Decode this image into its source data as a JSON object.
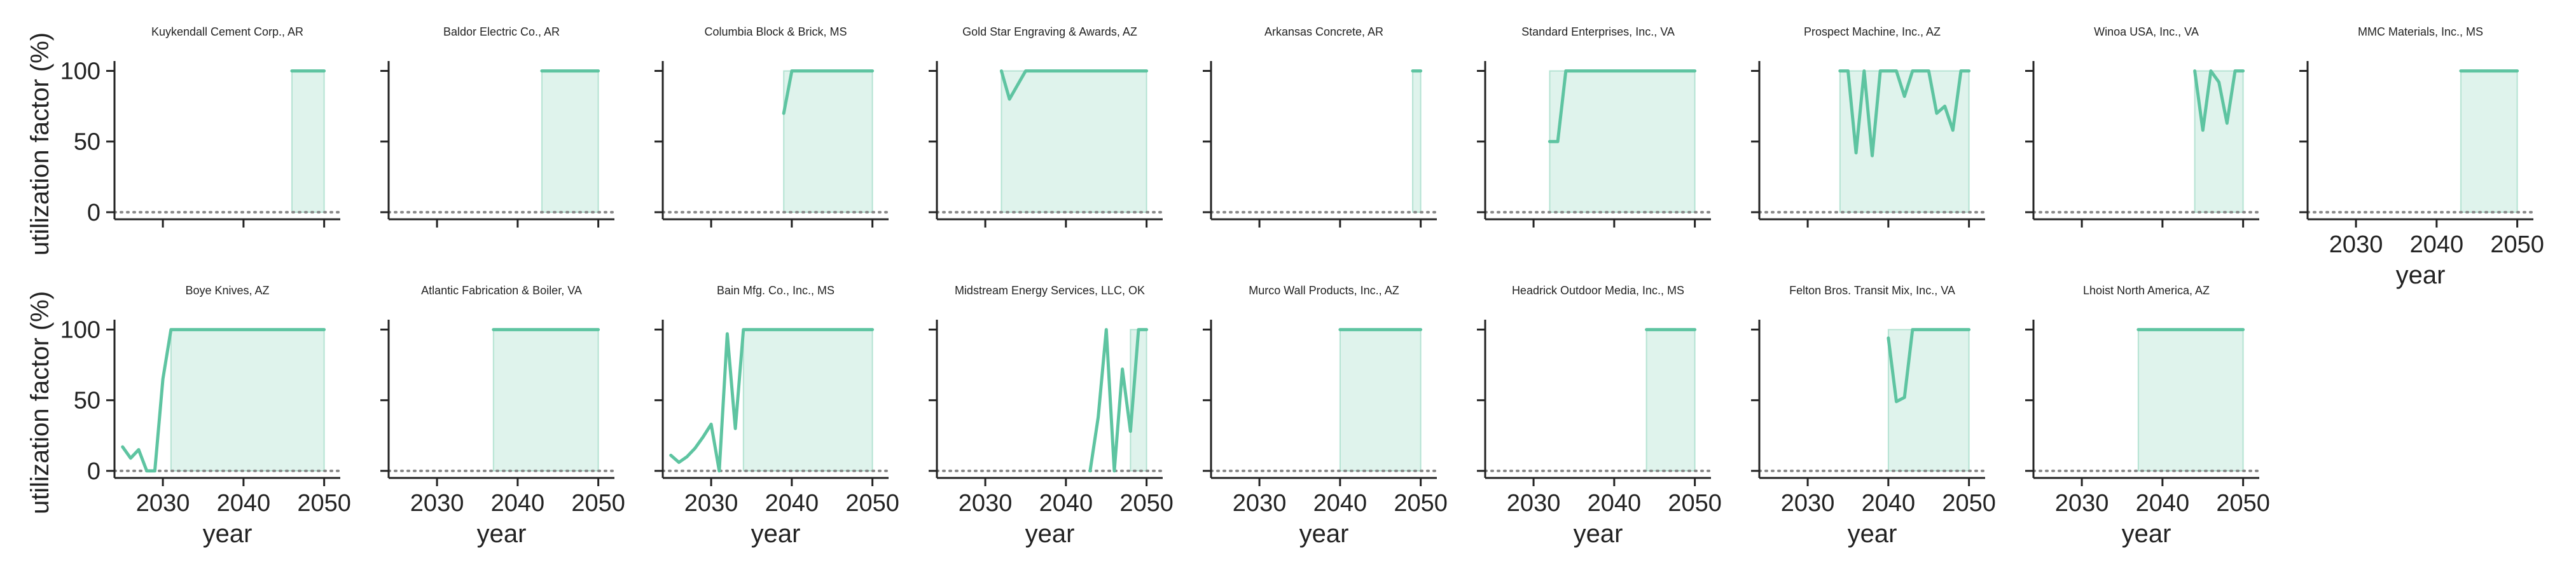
{
  "figure": {
    "xlabel": "year",
    "ylabel": "utilization factor (%)",
    "line_color": "#5ec4a1",
    "fill_color": "#5ec4a1",
    "fill_opacity": 0.2,
    "axis_color": "#222222",
    "zero_line_color": "#888888",
    "zero_line_style": "dotted",
    "x_ticks": [
      2030,
      2040,
      2050
    ],
    "y_ticks": [
      0,
      50,
      100
    ]
  },
  "chart_data": [
    {
      "type": "line",
      "title": "Kuykendall Cement Corp., AR",
      "xlim": [
        2024,
        2052
      ],
      "ylim": [
        -5,
        107
      ],
      "x": [
        2046,
        2050
      ],
      "values": [
        100,
        100
      ],
      "shade": [
        2046,
        2050
      ]
    },
    {
      "type": "line",
      "title": "Baldor Electric Co., AR",
      "xlim": [
        2024,
        2052
      ],
      "ylim": [
        -5,
        107
      ],
      "x": [
        2043,
        2050
      ],
      "values": [
        100,
        100
      ],
      "shade": [
        2043,
        2050
      ]
    },
    {
      "type": "line",
      "title": "Columbia Block & Brick, MS",
      "xlim": [
        2024,
        2052
      ],
      "ylim": [
        -5,
        107
      ],
      "x": [
        2039,
        2040,
        2050
      ],
      "values": [
        70,
        100,
        100
      ],
      "shade": [
        2039,
        2050
      ]
    },
    {
      "type": "line",
      "title": "Gold Star Engraving & Awards, AZ",
      "xlim": [
        2024,
        2052
      ],
      "ylim": [
        -5,
        107
      ],
      "x": [
        2032,
        2033,
        2035,
        2050
      ],
      "values": [
        100,
        80,
        100,
        100
      ],
      "shade": [
        2032,
        2050
      ]
    },
    {
      "type": "line",
      "title": "Arkansas Concrete, AR",
      "xlim": [
        2024,
        2052
      ],
      "ylim": [
        -5,
        107
      ],
      "x": [
        2049,
        2050
      ],
      "values": [
        100,
        100
      ],
      "shade": [
        2049,
        2050
      ]
    },
    {
      "type": "line",
      "title": "Standard Enterprises, Inc., VA",
      "xlim": [
        2024,
        2052
      ],
      "ylim": [
        -5,
        107
      ],
      "x": [
        2032,
        2033,
        2034,
        2050
      ],
      "values": [
        50,
        50,
        100,
        100
      ],
      "shade": [
        2032,
        2050
      ]
    },
    {
      "type": "line",
      "title": "Prospect Machine, Inc., AZ",
      "xlim": [
        2024,
        2052
      ],
      "ylim": [
        -5,
        107
      ],
      "x": [
        2034,
        2035,
        2036,
        2037,
        2038,
        2039,
        2040,
        2041,
        2042,
        2043,
        2044,
        2045,
        2046,
        2047,
        2048,
        2049,
        2050
      ],
      "values": [
        100,
        100,
        42,
        100,
        40,
        100,
        100,
        100,
        82,
        100,
        100,
        100,
        70,
        75,
        58,
        100,
        100
      ],
      "shade": [
        2034,
        2050
      ]
    },
    {
      "type": "line",
      "title": "Winoa USA, Inc., VA",
      "xlim": [
        2024,
        2052
      ],
      "ylim": [
        -5,
        107
      ],
      "x": [
        2044,
        2045,
        2046,
        2047,
        2048,
        2049,
        2050
      ],
      "values": [
        100,
        58,
        100,
        92,
        63,
        100,
        100
      ],
      "shade": [
        2044,
        2050
      ]
    },
    {
      "type": "line",
      "title": "MMC Materials, Inc., MS",
      "xlim": [
        2024,
        2052
      ],
      "ylim": [
        -5,
        107
      ],
      "x": [
        2043,
        2050
      ],
      "values": [
        100,
        100
      ],
      "shade": [
        2043,
        2050
      ]
    },
    {
      "type": "line",
      "title": "Boye Knives, AZ",
      "xlim": [
        2024,
        2052
      ],
      "ylim": [
        -5,
        107
      ],
      "x": [
        2025,
        2026,
        2027,
        2028,
        2029,
        2030,
        2031,
        2050
      ],
      "values": [
        17,
        9,
        15,
        0,
        0,
        65,
        100,
        100
      ],
      "shade": [
        2031,
        2050
      ]
    },
    {
      "type": "line",
      "title": "Atlantic Fabrication & Boiler, VA",
      "xlim": [
        2024,
        2052
      ],
      "ylim": [
        -5,
        107
      ],
      "x": [
        2037,
        2050
      ],
      "values": [
        100,
        100
      ],
      "shade": [
        2037,
        2050
      ]
    },
    {
      "type": "line",
      "title": "Bain Mfg. Co., Inc., MS",
      "xlim": [
        2024,
        2052
      ],
      "ylim": [
        -5,
        107
      ],
      "x": [
        2025,
        2026,
        2027,
        2028,
        2029,
        2030,
        2031,
        2032,
        2033,
        2034,
        2050
      ],
      "values": [
        11,
        6,
        10,
        16,
        24,
        33,
        0,
        97,
        30,
        100,
        100
      ],
      "shade": [
        2034,
        2050
      ]
    },
    {
      "type": "line",
      "title": "Midstream Energy Services, LLC, OK",
      "xlim": [
        2024,
        2052
      ],
      "ylim": [
        -5,
        107
      ],
      "x": [
        2043,
        2044,
        2045,
        2046,
        2047,
        2048,
        2049,
        2050
      ],
      "values": [
        0,
        38,
        100,
        0,
        72,
        28,
        100,
        100
      ],
      "shade": [
        2048,
        2050
      ]
    },
    {
      "type": "line",
      "title": "Murco Wall Products, Inc., AZ",
      "xlim": [
        2024,
        2052
      ],
      "ylim": [
        -5,
        107
      ],
      "x": [
        2040,
        2050
      ],
      "values": [
        100,
        100
      ],
      "shade": [
        2040,
        2050
      ]
    },
    {
      "type": "line",
      "title": "Headrick Outdoor Media, Inc., MS",
      "xlim": [
        2024,
        2052
      ],
      "ylim": [
        -5,
        107
      ],
      "x": [
        2044,
        2050
      ],
      "values": [
        100,
        100
      ],
      "shade": [
        2044,
        2050
      ]
    },
    {
      "type": "line",
      "title": "Felton Bros. Transit Mix, Inc., VA",
      "xlim": [
        2024,
        2052
      ],
      "ylim": [
        -5,
        107
      ],
      "x": [
        2040,
        2041,
        2042,
        2043,
        2050
      ],
      "values": [
        94,
        49,
        52,
        100,
        100
      ],
      "shade": [
        2040,
        2050
      ]
    },
    {
      "type": "line",
      "title": "Lhoist North America, AZ",
      "xlim": [
        2024,
        2052
      ],
      "ylim": [
        -5,
        107
      ],
      "x": [
        2037,
        2050
      ],
      "values": [
        100,
        100
      ],
      "shade": [
        2037,
        2050
      ]
    }
  ]
}
